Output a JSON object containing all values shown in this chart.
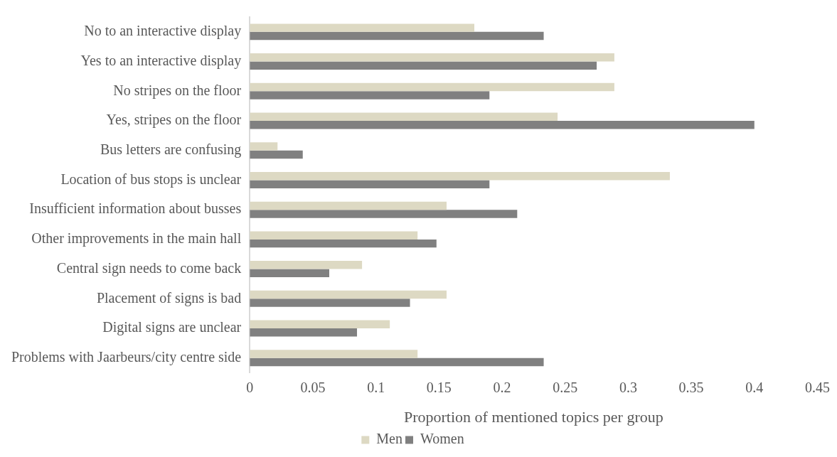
{
  "chart_data": {
    "type": "bar",
    "orientation": "horizontal",
    "xlabel": "Proportion of mentioned topics per group",
    "categories": [
      "No to an interactive display",
      "Yes to an interactive display",
      "No stripes on the floor",
      "Yes, stripes on the floor",
      "Bus letters are confusing",
      "Location of bus stops is unclear",
      "Insufficient information about busses",
      "Other improvements in the main hall",
      "Central sign needs to come back",
      "Placement of signs is bad",
      "Digital signs are unclear",
      "Problems with Jaarbeurs/city centre side"
    ],
    "series": [
      {
        "name": "Men",
        "color": "#ddd9c3",
        "values": [
          0.178,
          0.289,
          0.289,
          0.244,
          0.022,
          0.333,
          0.156,
          0.133,
          0.089,
          0.156,
          0.111,
          0.133
        ]
      },
      {
        "name": "Women",
        "color": "#808080",
        "values": [
          0.233,
          0.275,
          0.19,
          0.4,
          0.042,
          0.19,
          0.212,
          0.148,
          0.063,
          0.127,
          0.085,
          0.233
        ]
      }
    ],
    "xlim": [
      0,
      0.45
    ],
    "xticks": [
      0,
      0.05,
      0.1,
      0.15,
      0.2,
      0.25,
      0.3,
      0.35,
      0.4,
      0.45
    ],
    "grid": false,
    "legend": "bottom"
  }
}
